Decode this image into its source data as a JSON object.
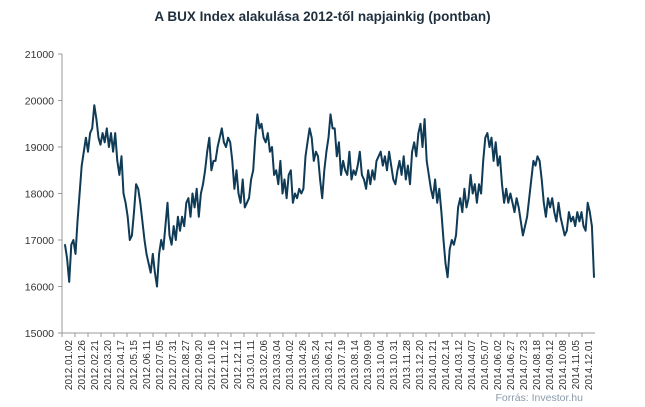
{
  "chart_data": {
    "type": "line",
    "title": "A BUX Index alakulása 2012-től napjainkig (pontban)",
    "source": "Forrás: Investor.hu",
    "ylim": [
      15000,
      21000
    ],
    "yticks": [
      15000,
      16000,
      17000,
      18000,
      19000,
      20000,
      21000
    ],
    "xticks": [
      "2012.01.02",
      "2012.01.26",
      "2012.02.21",
      "2012.03.20",
      "2012.04.17",
      "2012.05.15",
      "2012.06.11",
      "2012.07.05",
      "2012.07.31",
      "2012.08.27",
      "2012.09.20",
      "2012.10.16",
      "2012.11.12",
      "2012.12.11",
      "2013.01.11",
      "2013.02.06",
      "2013.03.04",
      "2013.04.02",
      "2013.04.26",
      "2013.05.24",
      "2013.06.21",
      "2013.07.19",
      "2013.08.14",
      "2013.09.09",
      "2013.10.04",
      "2013.10.31",
      "2013.11.28",
      "2013.12.20",
      "2014.01.21",
      "2014.02.14",
      "2014.03.12",
      "2014.04.07",
      "2014.05.07",
      "2014.06.02",
      "2014.06.27",
      "2014.07.23",
      "2014.08.18",
      "2014.09.12",
      "2014.10.08",
      "2014.11.05",
      "2014.12.01"
    ],
    "grid": false,
    "color": "#0f3b57",
    "series": [
      {
        "values": [
          [
            0,
            16900
          ],
          [
            1,
            16600
          ],
          [
            2,
            16100
          ],
          [
            3,
            16900
          ],
          [
            4,
            17000
          ],
          [
            5,
            16700
          ],
          [
            6,
            17400
          ],
          [
            7,
            18000
          ],
          [
            8,
            18600
          ],
          [
            9,
            18900
          ],
          [
            10,
            19200
          ],
          [
            11,
            18900
          ],
          [
            12,
            19300
          ],
          [
            13,
            19400
          ],
          [
            14,
            19900
          ],
          [
            15,
            19600
          ],
          [
            16,
            19200
          ],
          [
            17,
            19050
          ],
          [
            18,
            19300
          ],
          [
            19,
            19100
          ],
          [
            20,
            19400
          ],
          [
            21,
            19000
          ],
          [
            22,
            19300
          ],
          [
            23,
            18900
          ],
          [
            24,
            19300
          ],
          [
            25,
            18700
          ],
          [
            26,
            18400
          ],
          [
            27,
            18800
          ],
          [
            28,
            18000
          ],
          [
            29,
            17800
          ],
          [
            30,
            17500
          ],
          [
            31,
            17000
          ],
          [
            32,
            17100
          ],
          [
            33,
            17600
          ],
          [
            34,
            18200
          ],
          [
            35,
            18100
          ],
          [
            36,
            17800
          ],
          [
            37,
            17400
          ],
          [
            38,
            17000
          ],
          [
            39,
            16700
          ],
          [
            40,
            16500
          ],
          [
            41,
            16300
          ],
          [
            42,
            16700
          ],
          [
            43,
            16300
          ],
          [
            44,
            16000
          ],
          [
            45,
            16700
          ],
          [
            46,
            17000
          ],
          [
            47,
            16800
          ],
          [
            48,
            17300
          ],
          [
            49,
            17800
          ],
          [
            50,
            17100
          ],
          [
            51,
            16900
          ],
          [
            52,
            17300
          ],
          [
            53,
            17000
          ],
          [
            54,
            17500
          ],
          [
            55,
            17200
          ],
          [
            56,
            17500
          ],
          [
            57,
            17300
          ],
          [
            58,
            17800
          ],
          [
            59,
            17900
          ],
          [
            60,
            17500
          ],
          [
            61,
            18000
          ],
          [
            62,
            17700
          ],
          [
            63,
            18100
          ],
          [
            64,
            17500
          ],
          [
            65,
            18000
          ],
          [
            66,
            18200
          ],
          [
            67,
            18500
          ],
          [
            68,
            18900
          ],
          [
            69,
            19200
          ],
          [
            70,
            18500
          ],
          [
            71,
            18700
          ],
          [
            72,
            18700
          ],
          [
            73,
            19000
          ],
          [
            74,
            19200
          ],
          [
            75,
            19400
          ],
          [
            76,
            19100
          ],
          [
            77,
            19000
          ],
          [
            78,
            19200
          ],
          [
            79,
            19100
          ],
          [
            80,
            18700
          ],
          [
            81,
            18100
          ],
          [
            82,
            18500
          ],
          [
            83,
            18000
          ],
          [
            84,
            17800
          ],
          [
            85,
            18300
          ],
          [
            86,
            17700
          ],
          [
            87,
            17800
          ],
          [
            88,
            17900
          ],
          [
            89,
            18300
          ],
          [
            90,
            18500
          ],
          [
            91,
            19200
          ],
          [
            92,
            19700
          ],
          [
            93,
            19400
          ],
          [
            94,
            19500
          ],
          [
            95,
            19200
          ],
          [
            96,
            19100
          ],
          [
            97,
            19300
          ],
          [
            98,
            18900
          ],
          [
            99,
            19000
          ],
          [
            100,
            18400
          ],
          [
            101,
            18500
          ],
          [
            102,
            18200
          ],
          [
            103,
            18700
          ],
          [
            104,
            18000
          ],
          [
            105,
            18300
          ],
          [
            106,
            17900
          ],
          [
            107,
            18400
          ],
          [
            108,
            18500
          ],
          [
            109,
            17800
          ],
          [
            110,
            18000
          ],
          [
            111,
            17900
          ],
          [
            112,
            18100
          ],
          [
            113,
            18000
          ],
          [
            114,
            18100
          ],
          [
            115,
            18800
          ],
          [
            116,
            19100
          ],
          [
            117,
            19400
          ],
          [
            118,
            19200
          ],
          [
            119,
            18700
          ],
          [
            120,
            18900
          ],
          [
            121,
            18800
          ],
          [
            122,
            18300
          ],
          [
            123,
            17900
          ],
          [
            124,
            18500
          ],
          [
            125,
            18900
          ],
          [
            126,
            19200
          ],
          [
            127,
            19700
          ],
          [
            128,
            19400
          ],
          [
            129,
            19400
          ],
          [
            130,
            18800
          ],
          [
            131,
            19100
          ],
          [
            132,
            18400
          ],
          [
            133,
            18700
          ],
          [
            134,
            18500
          ],
          [
            135,
            18400
          ],
          [
            136,
            18900
          ],
          [
            137,
            18300
          ],
          [
            138,
            18500
          ],
          [
            139,
            18400
          ],
          [
            140,
            18600
          ],
          [
            141,
            18900
          ],
          [
            142,
            18400
          ],
          [
            143,
            18300
          ],
          [
            144,
            18100
          ],
          [
            145,
            18500
          ],
          [
            146,
            18200
          ],
          [
            147,
            18500
          ],
          [
            148,
            18300
          ],
          [
            149,
            18700
          ],
          [
            150,
            18800
          ],
          [
            151,
            18900
          ],
          [
            152,
            18600
          ],
          [
            153,
            18800
          ],
          [
            154,
            18500
          ],
          [
            155,
            18900
          ],
          [
            156,
            18600
          ],
          [
            157,
            18300
          ],
          [
            158,
            18200
          ],
          [
            159,
            18500
          ],
          [
            160,
            18700
          ],
          [
            161,
            18400
          ],
          [
            162,
            18800
          ],
          [
            163,
            18300
          ],
          [
            164,
            18600
          ],
          [
            165,
            18200
          ],
          [
            166,
            18900
          ],
          [
            167,
            19100
          ],
          [
            168,
            18800
          ],
          [
            169,
            19300
          ],
          [
            170,
            19500
          ],
          [
            171,
            19000
          ],
          [
            172,
            19600
          ],
          [
            173,
            18700
          ],
          [
            174,
            18400
          ],
          [
            175,
            18100
          ],
          [
            176,
            17900
          ],
          [
            177,
            18300
          ],
          [
            178,
            17800
          ],
          [
            179,
            18100
          ],
          [
            180,
            17600
          ],
          [
            181,
            17000
          ],
          [
            182,
            16500
          ],
          [
            183,
            16200
          ],
          [
            184,
            16800
          ],
          [
            185,
            17000
          ],
          [
            186,
            16900
          ],
          [
            187,
            17100
          ],
          [
            188,
            17700
          ],
          [
            189,
            17900
          ],
          [
            190,
            17600
          ],
          [
            191,
            18100
          ],
          [
            192,
            17700
          ],
          [
            193,
            17900
          ],
          [
            194,
            18400
          ],
          [
            195,
            18000
          ],
          [
            196,
            18200
          ],
          [
            197,
            17800
          ],
          [
            198,
            18200
          ],
          [
            199,
            18000
          ],
          [
            200,
            18700
          ],
          [
            201,
            19200
          ],
          [
            202,
            19300
          ],
          [
            203,
            19000
          ],
          [
            204,
            19200
          ],
          [
            205,
            18700
          ],
          [
            206,
            19100
          ],
          [
            207,
            18600
          ],
          [
            208,
            18800
          ],
          [
            209,
            18200
          ],
          [
            210,
            17800
          ],
          [
            211,
            18100
          ],
          [
            212,
            17800
          ],
          [
            213,
            18000
          ],
          [
            214,
            17800
          ],
          [
            215,
            17600
          ],
          [
            216,
            17900
          ],
          [
            217,
            17700
          ],
          [
            218,
            17400
          ],
          [
            219,
            17100
          ],
          [
            220,
            17300
          ],
          [
            221,
            17500
          ],
          [
            222,
            17900
          ],
          [
            223,
            18300
          ],
          [
            224,
            18700
          ],
          [
            225,
            18600
          ],
          [
            226,
            18800
          ],
          [
            227,
            18700
          ],
          [
            228,
            18300
          ],
          [
            229,
            17800
          ],
          [
            230,
            17500
          ],
          [
            231,
            17900
          ],
          [
            232,
            17700
          ],
          [
            233,
            17900
          ],
          [
            234,
            17600
          ],
          [
            235,
            17400
          ],
          [
            236,
            17800
          ],
          [
            237,
            17500
          ],
          [
            238,
            17300
          ],
          [
            239,
            17100
          ],
          [
            240,
            17200
          ],
          [
            241,
            17600
          ],
          [
            242,
            17400
          ],
          [
            243,
            17500
          ],
          [
            244,
            17300
          ],
          [
            245,
            17600
          ],
          [
            246,
            17400
          ],
          [
            247,
            17600
          ],
          [
            248,
            17300
          ],
          [
            249,
            17200
          ],
          [
            250,
            17800
          ],
          [
            251,
            17600
          ],
          [
            252,
            17300
          ],
          [
            253,
            16200
          ]
        ]
      }
    ]
  }
}
